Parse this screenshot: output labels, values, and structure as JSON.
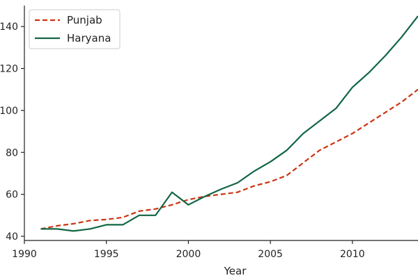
{
  "chart_data": {
    "type": "line",
    "title": "",
    "xlabel": "Year",
    "ylabel": "",
    "xlim": [
      1990,
      2014
    ],
    "ylim": [
      38,
      150
    ],
    "x_ticks": [
      1990,
      1995,
      2000,
      2005,
      2010
    ],
    "x_tick_labels": [
      "1990",
      "1995",
      "2000",
      "2005",
      "2010"
    ],
    "y_ticks": [
      40,
      60,
      80,
      100,
      120,
      140
    ],
    "y_tick_labels": [
      "40",
      "60",
      "80",
      "100",
      "120",
      "140"
    ],
    "grid": false,
    "legend_position": "top-left",
    "x": [
      1991,
      1992,
      1993,
      1994,
      1995,
      1996,
      1997,
      1998,
      1999,
      2000,
      2001,
      2002,
      2003,
      2004,
      2005,
      2006,
      2007,
      2008,
      2009,
      2010,
      2011,
      2012,
      2013,
      2014
    ],
    "series": [
      {
        "name": "Punjab",
        "color": "#cc3311",
        "dash": "dashed",
        "values": [
          43.5,
          45,
          46,
          47.5,
          48,
          49,
          52,
          53,
          55,
          57.5,
          59,
          60,
          61,
          64,
          66,
          69,
          75,
          81,
          85,
          89,
          94,
          99,
          104,
          110
        ]
      },
      {
        "name": "Haryana",
        "color": "#116644",
        "dash": "solid",
        "values": [
          43.5,
          43.5,
          42.5,
          43.5,
          45.5,
          45.5,
          50,
          50,
          61,
          55,
          59,
          62.5,
          65.5,
          71,
          75.5,
          81,
          89,
          95,
          101,
          111,
          118,
          126,
          135,
          145
        ]
      }
    ]
  }
}
